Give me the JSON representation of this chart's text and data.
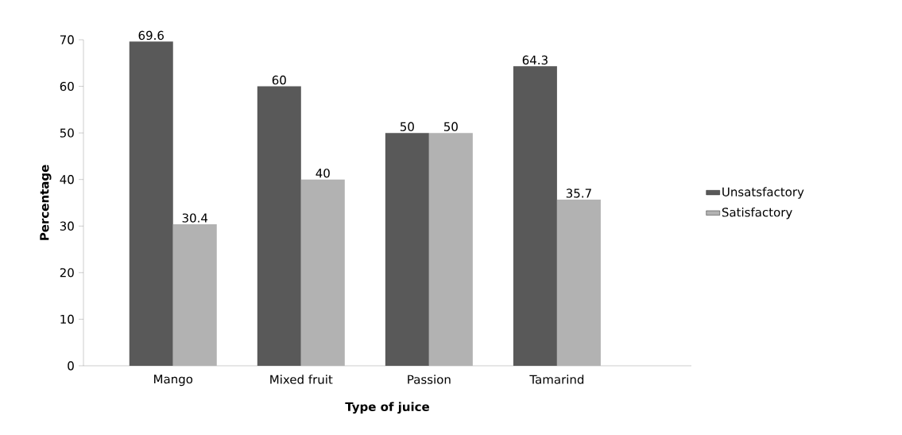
{
  "chart_data": {
    "type": "bar",
    "xlabel": "Type of juice",
    "ylabel": "Percentage",
    "categories": [
      "Mango",
      "Mixed fruit",
      "Passion",
      "Tamarind"
    ],
    "series": [
      {
        "name": "Unsatsfactory",
        "color": "#595959",
        "values": [
          69.6,
          60,
          50,
          64.3
        ]
      },
      {
        "name": "Satisfactory",
        "color": "#b2b2b2",
        "values": [
          30.4,
          40,
          50,
          35.7
        ]
      }
    ],
    "ylim": [
      0,
      70
    ],
    "yticks": [
      0,
      10,
      20,
      30,
      40,
      50,
      60,
      70
    ],
    "legend": "right",
    "data_labels": true
  }
}
